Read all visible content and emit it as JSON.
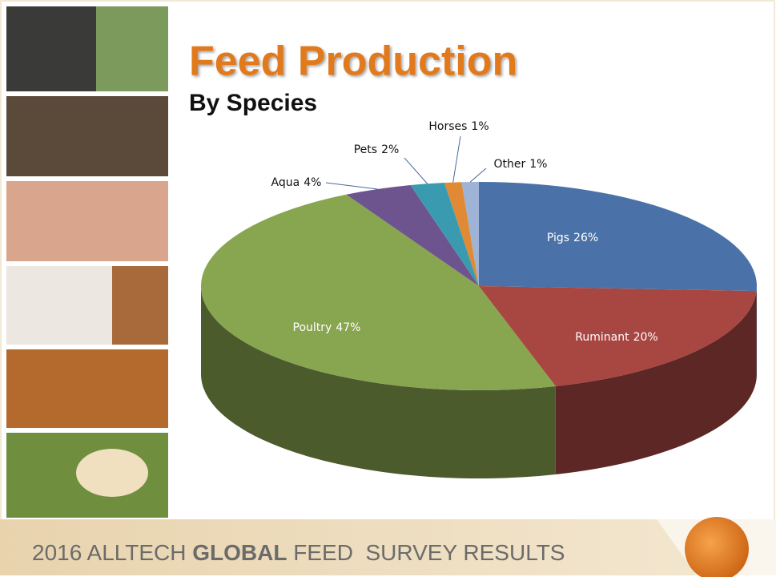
{
  "chart_data": {
    "type": "pie",
    "title": "Feed Production",
    "subtitle": "By Species",
    "categories": [
      "Pigs",
      "Ruminant",
      "Poultry",
      "Aqua",
      "Pets",
      "Horses",
      "Other"
    ],
    "values": [
      26,
      20,
      47,
      4,
      2,
      1,
      1
    ],
    "value_labels": [
      "26%",
      "20%",
      "47%",
      "4%",
      "2%",
      "1%",
      "1%"
    ],
    "colors": [
      "#4a72a8",
      "#a84642",
      "#88a550",
      "#6e548f",
      "#3a9bb0",
      "#e08a35",
      "#9eb3d6"
    ]
  },
  "footer": {
    "prefix": "2016 ALLTECH ",
    "bold": "GLOBAL",
    "suffix": " FEED  SURVEY RESULTS"
  }
}
